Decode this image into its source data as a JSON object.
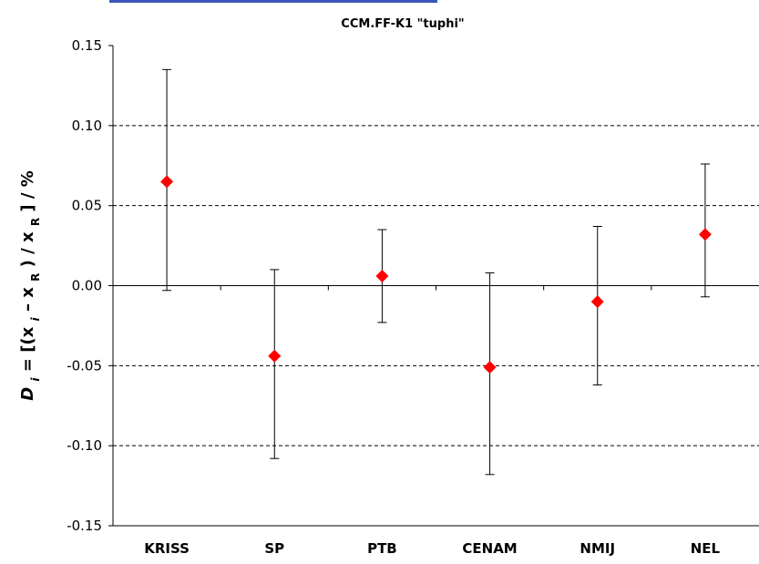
{
  "chart_data": {
    "type": "scatter",
    "title": "CCM.FF-K1   \"tuphi\"",
    "ylabel": {
      "d": "D",
      "i_sub": "i",
      "eq_open": " = [(x",
      "i_it": "i",
      "minus": " – x",
      "r_sub": "R",
      "mid": ") / x",
      "r_sub2": "R",
      "tail": "] / %"
    },
    "ylim": [
      -0.15,
      0.15
    ],
    "yticks": [
      -0.15,
      -0.1,
      -0.05,
      0.0,
      0.05,
      0.1,
      0.15
    ],
    "ytick_labels": [
      "-0.15",
      "-0.10",
      "-0.05",
      "0.00",
      "0.05",
      "0.10",
      "0.15"
    ],
    "grid": "horizontal dashed at ±0.05, ±0.10",
    "categories": [
      "KRISS",
      "SP",
      "PTB",
      "CENAM",
      "NMIJ",
      "NEL"
    ],
    "values": [
      0.065,
      -0.044,
      0.006,
      -0.051,
      -0.01,
      0.032
    ],
    "error_low": [
      -0.003,
      -0.108,
      -0.023,
      -0.118,
      -0.062,
      -0.007
    ],
    "error_high": [
      0.135,
      0.01,
      0.035,
      0.008,
      0.037,
      0.076
    ],
    "marker_color": "#ff0000",
    "errorbar_color": "#000000",
    "gridline_color": "#000000"
  }
}
